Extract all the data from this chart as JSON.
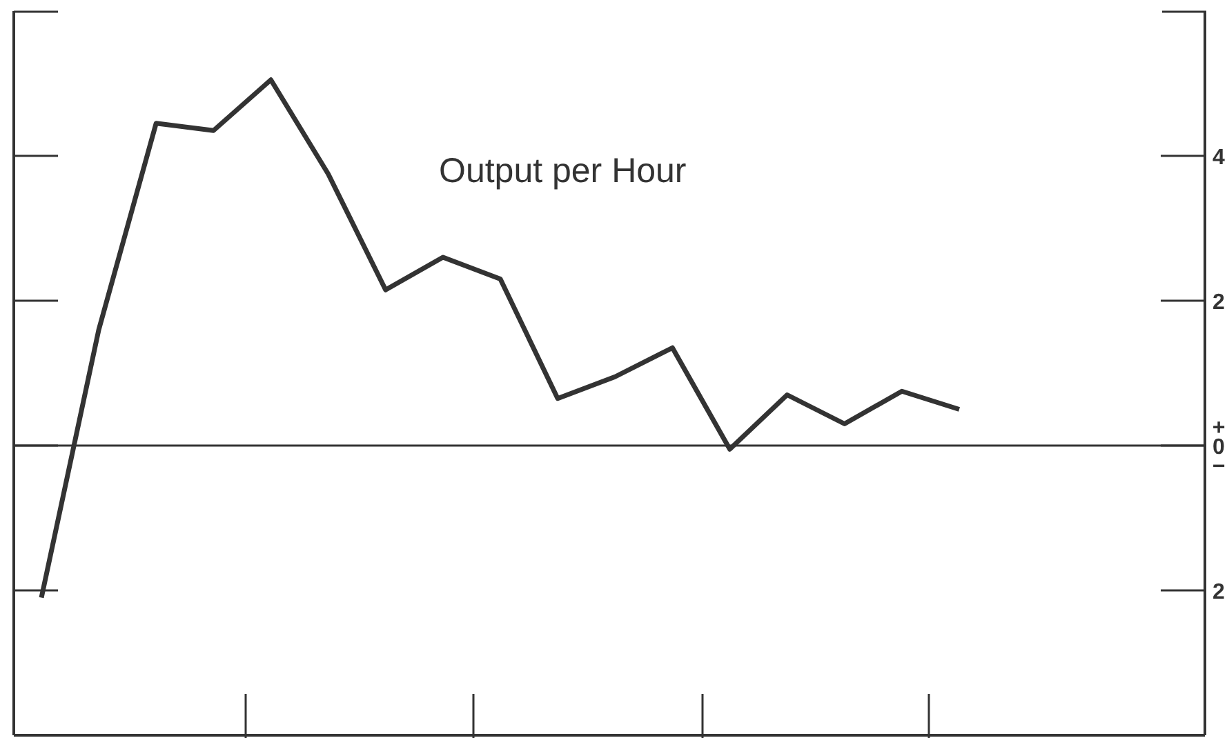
{
  "chart_data": {
    "type": "line",
    "title": "Output per Hour",
    "categories": [
      null,
      null,
      null,
      null,
      null,
      null,
      null,
      null,
      null,
      null,
      null,
      null,
      null,
      null,
      null,
      null,
      null
    ],
    "series": [
      {
        "color": "#333333",
        "values": [
          -2.1,
          1.6,
          4.45,
          4.35,
          5.05,
          3.75,
          2.15,
          2.6,
          2.3,
          0.65,
          0.95,
          1.35,
          -0.05,
          0.7,
          0.3,
          0.75,
          0.5
        ]
      }
    ],
    "ylim": [
      -4,
      6
    ],
    "yticks": [
      {
        "value": -2,
        "label": "2"
      },
      {
        "value": 0,
        "label": "+\n0\n−"
      },
      {
        "value": 2,
        "label": "2"
      },
      {
        "value": 4,
        "label": "4"
      }
    ],
    "ref_lines": [
      {
        "axis": "y",
        "value": 0,
        "color": "#333333"
      }
    ],
    "tick_labels": "y",
    "grid": false,
    "legend": false,
    "marker": "none",
    "line_style": "solid"
  }
}
